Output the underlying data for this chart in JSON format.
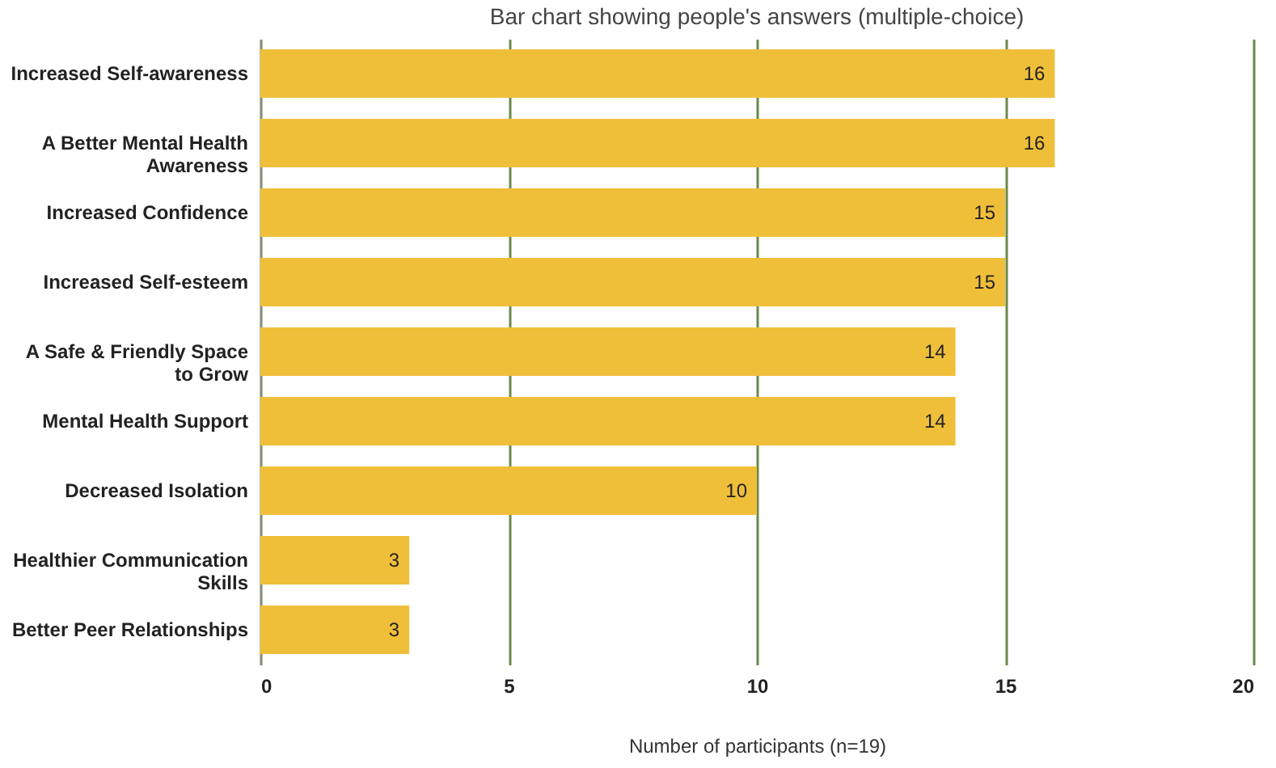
{
  "chart_data": {
    "type": "bar",
    "orientation": "horizontal",
    "subtitle": "Bar chart showing people's answers (multiple-choice)",
    "xlabel": "Number of participants (n=19)",
    "categories": [
      "Increased Self-awareness",
      "A Better Mental Health Awareness",
      "Increased Confidence",
      "Increased Self-esteem",
      "A Safe & Friendly Space to Grow",
      "Mental Health Support",
      "Decreased Isolation",
      "Healthier Communication Skills",
      "Better Peer Relationships"
    ],
    "values": [
      16,
      16,
      15,
      15,
      14,
      14,
      10,
      3,
      3
    ],
    "color": "#f0bf3a",
    "xlim": [
      0,
      20
    ],
    "xticks": [
      0,
      5,
      10,
      15,
      20
    ],
    "grid": "x",
    "data_labels": true
  }
}
